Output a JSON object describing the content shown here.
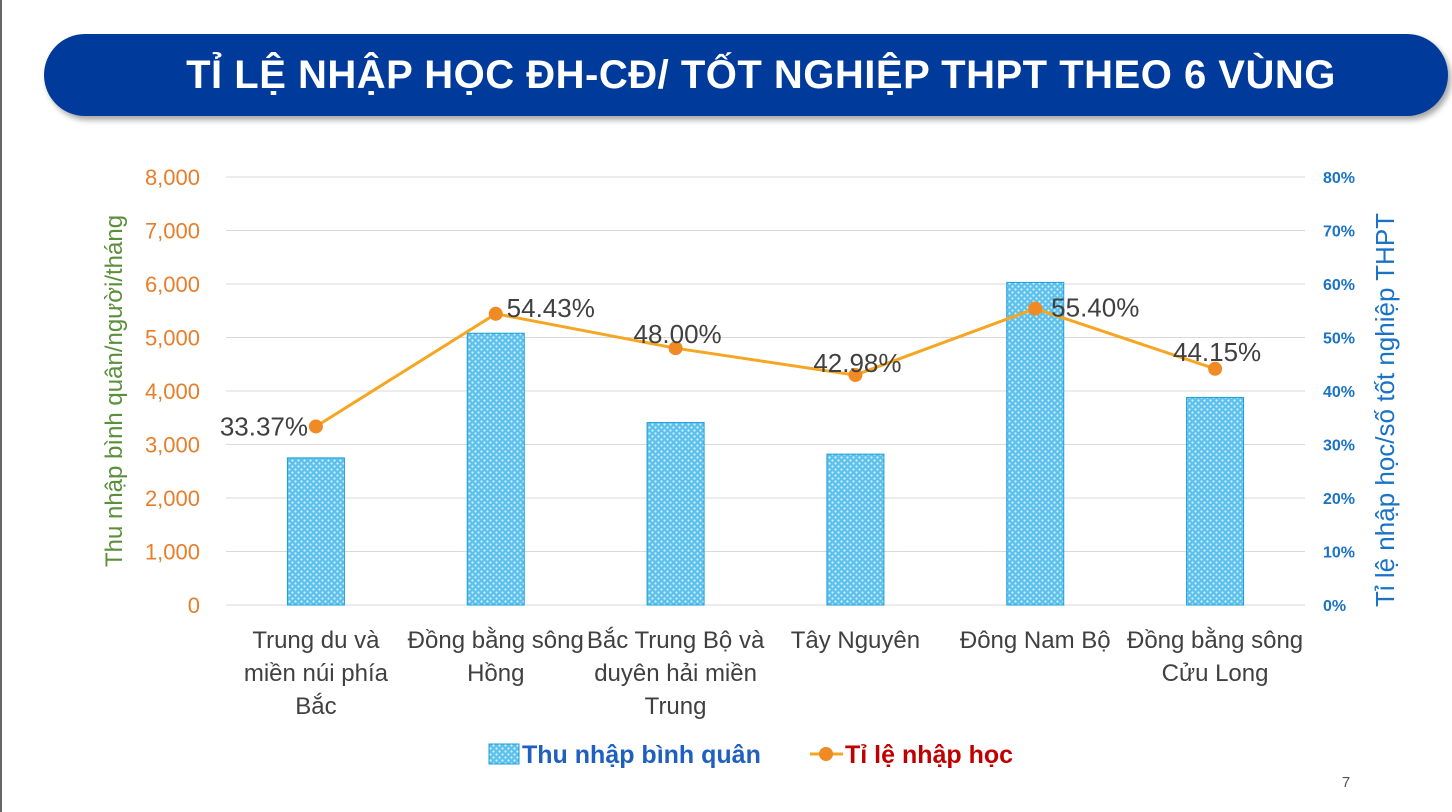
{
  "title": "TỈ LỆ NHẬP HỌC ĐH-CĐ/ TỐT NGHIỆP THPT THEO 6 VÙNG",
  "page_number": "7",
  "colors": {
    "banner": "#003a9b",
    "bar_fill": "#5bc0eb",
    "bar_edge": "#1b9fd6",
    "line": "#f5a623",
    "marker": "#f08a24",
    "left_axis_ticks": "#e87d2a",
    "left_axis_title": "#5a8f3c",
    "right_axis": "#1a73c4",
    "legend_bar_text": "#1f5fbf",
    "legend_line_text": "#c00000"
  },
  "chart_data": {
    "type": "bar",
    "categories": [
      [
        "Trung du và",
        "miền núi phía",
        "Bắc"
      ],
      [
        "Đồng bằng sông",
        "Hồng"
      ],
      [
        "Bắc Trung Bộ và",
        "duyên hải miền",
        "Trung"
      ],
      [
        "Tây Nguyên"
      ],
      [
        "Đông Nam Bộ"
      ],
      [
        "Đồng bằng sông",
        "Cửu Long"
      ]
    ],
    "series": [
      {
        "name": "Thu nhập bình quân",
        "type": "bar",
        "axis": "left",
        "values": [
          2750,
          5080,
          3410,
          2820,
          6030,
          3880
        ]
      },
      {
        "name": "Tỉ lệ nhập học",
        "type": "line",
        "axis": "right",
        "values": [
          33.37,
          54.43,
          48.0,
          42.98,
          55.4,
          44.15
        ],
        "labels": [
          "33.37%",
          "54.43%",
          "48.00%",
          "42.98%",
          "55.40%",
          "44.15%"
        ]
      }
    ],
    "y_left": {
      "label": "Thu nhập bình quân/người/tháng",
      "range": [
        0,
        8000
      ],
      "ticks": [
        "0",
        "1,000",
        "2,000",
        "3,000",
        "4,000",
        "5,000",
        "6,000",
        "7,000",
        "8,000"
      ]
    },
    "y_right": {
      "label": "Tỉ lệ nhập học/số tốt nghiệp THPT",
      "range": [
        0,
        80
      ],
      "ticks": [
        "0%",
        "10%",
        "20%",
        "30%",
        "40%",
        "50%",
        "60%",
        "70%",
        "80%"
      ]
    },
    "grid": true,
    "legend": {
      "position": "bottom",
      "items": [
        "Thu nhập bình quân",
        "Tỉ lệ nhập học"
      ]
    }
  }
}
